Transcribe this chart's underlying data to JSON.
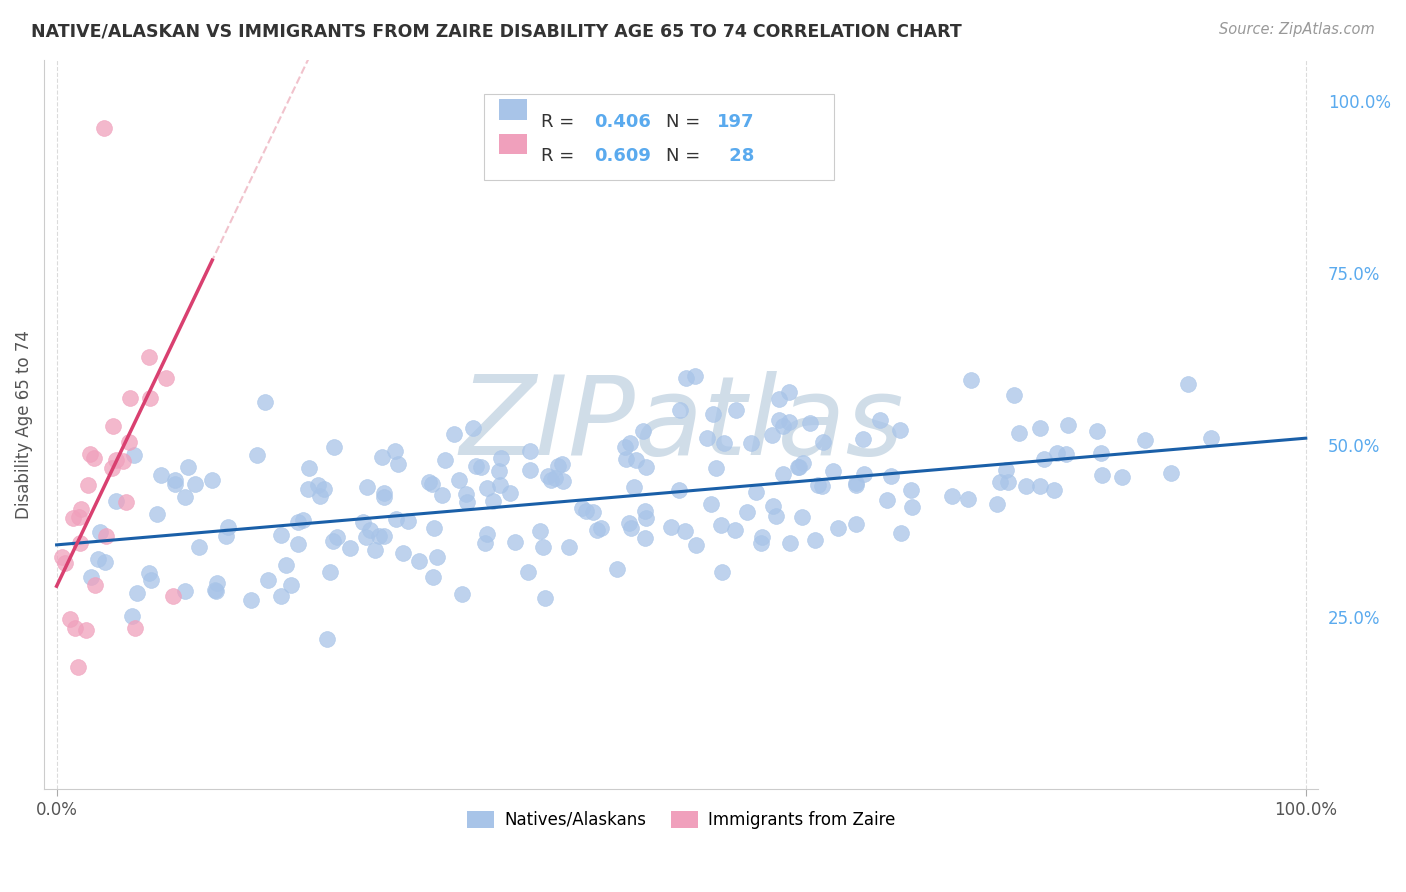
{
  "title": "NATIVE/ALASKAN VS IMMIGRANTS FROM ZAIRE DISABILITY AGE 65 TO 74 CORRELATION CHART",
  "source": "Source: ZipAtlas.com",
  "ylabel": "Disability Age 65 to 74",
  "native_color": "#a8c4e8",
  "immigrant_color": "#f0a0bc",
  "native_line_color": "#1a5fa8",
  "immigrant_line_color": "#d94070",
  "immigrant_line_dashed_color": "#e89aaa",
  "tick_color": "#5aaaee",
  "grid_color": "#d8d8d8",
  "background_color": "#ffffff",
  "watermark": "ZIPatlas",
  "watermark_color": "#d0dde8",
  "native_R": 0.406,
  "native_N": 197,
  "immigrant_R": 0.609,
  "immigrant_N": 28,
  "native_slope": 0.155,
  "native_intercept": 0.355,
  "immigrant_slope": 3.8,
  "immigrant_intercept": 0.295,
  "ytick_positions": [
    0.25,
    0.5,
    0.75,
    1.0
  ],
  "ytick_labels": [
    "25.0%",
    "50.0%",
    "75.0%",
    "100.0%"
  ]
}
